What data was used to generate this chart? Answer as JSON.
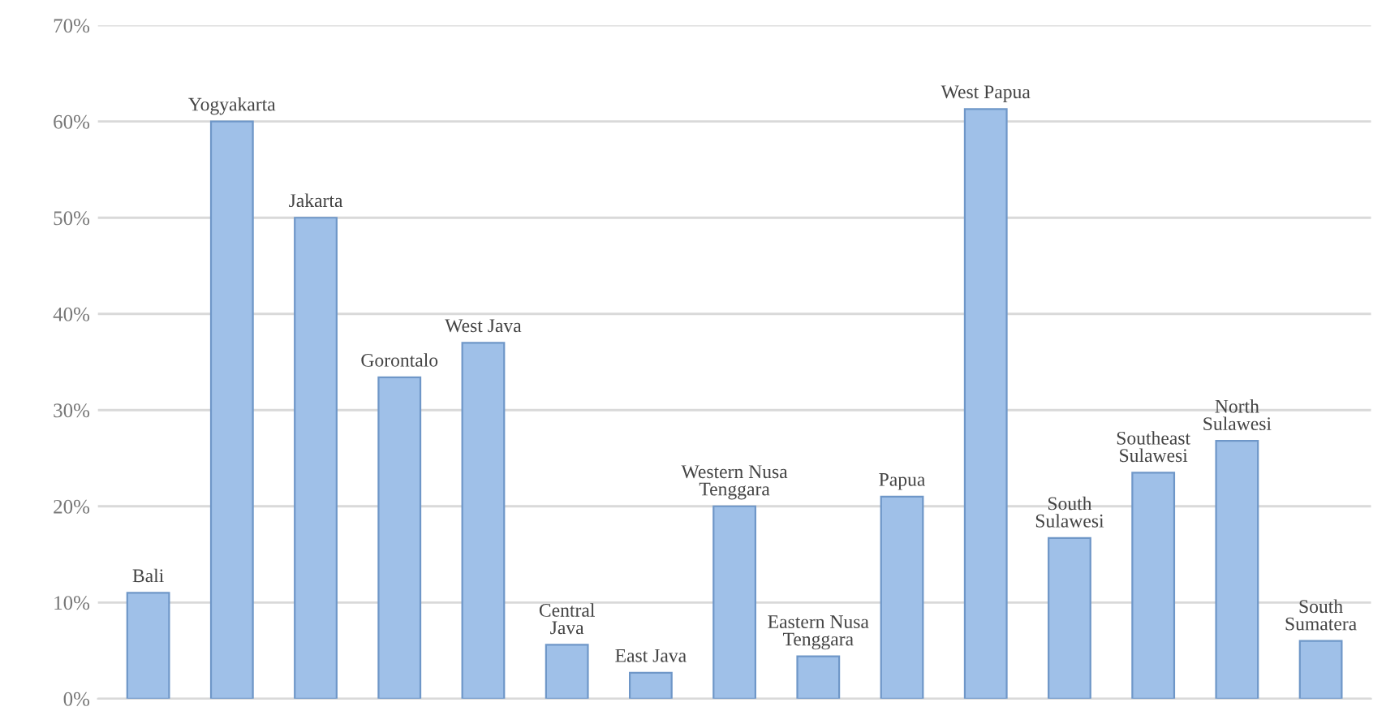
{
  "chart_data": {
    "type": "bar",
    "categories": [
      "Bali",
      "Yogyakarta",
      "Jakarta",
      "Gorontalo",
      "West Java",
      "Central\nJava",
      "East Java",
      "Western Nusa\nTenggara",
      "Eastern Nusa\nTenggara",
      "Papua",
      "West Papua",
      "South\nSulawesi",
      "Southeast\nSulawesi",
      "North\nSulawesi",
      "South\nSumatera"
    ],
    "values": [
      11,
      60,
      50,
      33.4,
      37,
      5.6,
      2.7,
      20,
      4.4,
      21,
      61.3,
      16.7,
      23.5,
      26.8,
      6.0
    ],
    "color": "#9fc0e8",
    "ylim": [
      0,
      70
    ],
    "yticks": [
      {
        "value": 0,
        "label": "0%"
      },
      {
        "value": 10,
        "label": "10%"
      },
      {
        "value": 20,
        "label": "20%"
      },
      {
        "value": 30,
        "label": "30%"
      },
      {
        "value": 40,
        "label": "40%"
      },
      {
        "value": 50,
        "label": "50%"
      },
      {
        "value": 60,
        "label": "60%"
      },
      {
        "value": 70,
        "label": "70%"
      }
    ],
    "grid": "y"
  }
}
